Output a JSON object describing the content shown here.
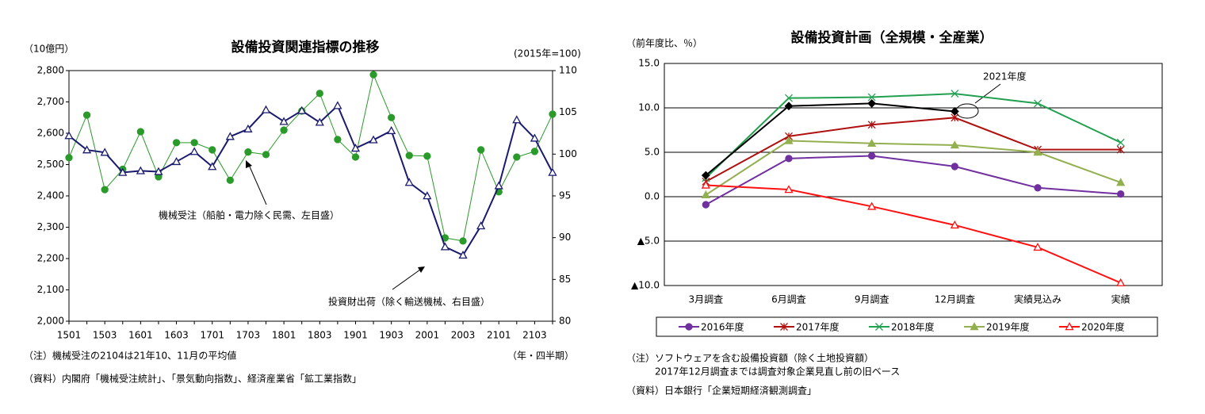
{
  "chart_data": [
    {
      "type": "line",
      "title": "設備投資関連指標の推移",
      "y_unit": "（10億円）",
      "y2_unit": "(2015年=100)",
      "xlabel": "（年・四半期）",
      "notes": [
        "（注）機械受注の2104は21年10、11月の平均値",
        "（資料）内閣府「機械受注統計」、「景気動向指数」、経済産業省「鉱工業指数」"
      ],
      "categories": [
        "1501",
        null,
        "1503",
        null,
        "1601",
        null,
        "1603",
        null,
        "1701",
        null,
        "1703",
        null,
        "1801",
        null,
        "1803",
        null,
        "1901",
        null,
        "1903",
        null,
        "2001",
        null,
        "2003",
        null,
        "2101",
        null,
        "2103",
        null
      ],
      "ylim": [
        2000,
        2800
      ],
      "yticks": [
        {
          "value": 2000,
          "label": "2,000"
        },
        {
          "value": 2100,
          "label": "2,100"
        },
        {
          "value": 2200,
          "label": "2,200"
        },
        {
          "value": 2300,
          "label": "2,300"
        },
        {
          "value": 2400,
          "label": "2,400"
        },
        {
          "value": 2500,
          "label": "2,500"
        },
        {
          "value": 2600,
          "label": "2,600"
        },
        {
          "value": 2700,
          "label": "2,700"
        },
        {
          "value": 2800,
          "label": "2,800"
        }
      ],
      "y2lim": [
        80,
        110
      ],
      "y2ticks": [
        80,
        85,
        90,
        95,
        100,
        105,
        110
      ],
      "grid": false,
      "series": [
        {
          "name": "機械受注（船舶・電力除く民需、左目盛）",
          "color": "#2a9a2a",
          "marker": "circle",
          "width": 1,
          "values": [
            2522,
            2658,
            2420,
            2485,
            2605,
            2461,
            2570,
            2570,
            2547,
            2450,
            2540,
            2532,
            2610,
            2671,
            2727,
            2580,
            2524,
            2787,
            2650,
            2529,
            2527,
            2266,
            2256,
            2547,
            2413,
            2524,
            2542,
            2661
          ]
        },
        {
          "name": "投資財出荷（除く輸送機械、右目盛）",
          "color": "#1a1a6e",
          "marker": "triangle-open",
          "width": 2,
          "axis": "y2",
          "values": [
            102.2,
            100.5,
            100.2,
            97.8,
            98.0,
            97.9,
            99.1,
            100.3,
            98.5,
            102.1,
            103.0,
            105.3,
            103.9,
            105.2,
            103.8,
            105.8,
            100.7,
            101.7,
            102.8,
            96.6,
            95.0,
            88.9,
            87.9,
            91.4,
            96.2,
            104.1,
            101.9,
            97.8
          ]
        }
      ]
    },
    {
      "type": "line",
      "title": "設備投資計画（全規模・全産業）",
      "y_unit": "（前年度比、％）",
      "annotation": "2021年度",
      "notes": [
        "（注）ソフトウェアを含む設備投資額（除く土地投資額）",
        "2017年12月調査までは調査対象企業見直し前の旧ベース",
        "（資料）日本銀行「企業短期経済観測調査」"
      ],
      "categories": [
        "3月調査",
        "6月調査",
        "9月調査",
        "12月調査",
        "実績見込み",
        "実績"
      ],
      "ylim": [
        -10,
        15
      ],
      "yticks": [
        {
          "value": -10,
          "label": "▲10.0"
        },
        {
          "value": -5,
          "label": "▲5.0"
        },
        {
          "value": 0,
          "label": "0.0"
        },
        {
          "value": 5,
          "label": "5.0"
        },
        {
          "value": 10,
          "label": "10.0"
        },
        {
          "value": 15,
          "label": "15.0"
        }
      ],
      "grid": true,
      "series": [
        {
          "name": "2016年度",
          "color": "#7030a0",
          "marker": "circle",
          "width": 2,
          "values": [
            -0.9,
            4.3,
            4.6,
            3.4,
            1.0,
            0.3
          ]
        },
        {
          "name": "2017年度",
          "color": "#b01010",
          "marker": "star",
          "width": 2,
          "values": [
            1.7,
            6.8,
            8.1,
            8.9,
            5.3,
            5.3
          ]
        },
        {
          "name": "2018年度",
          "color": "#22a050",
          "marker": "x",
          "width": 2,
          "values": [
            2.1,
            11.1,
            11.2,
            11.6,
            10.5,
            6.1
          ]
        },
        {
          "name": "2019年度",
          "color": "#93b050",
          "marker": "triangle",
          "width": 2,
          "values": [
            0.2,
            6.3,
            6.0,
            5.8,
            5.0,
            1.6
          ]
        },
        {
          "name": "2020年度",
          "color": "#ff1010",
          "marker": "triangle-open",
          "width": 2,
          "values": [
            1.3,
            0.8,
            -1.1,
            -3.2,
            -5.7,
            -9.7
          ]
        },
        {
          "color": "#000000",
          "marker": "diamond",
          "width": 2,
          "values": [
            2.4,
            10.2,
            10.5,
            9.6,
            null,
            null
          ]
        }
      ]
    }
  ]
}
